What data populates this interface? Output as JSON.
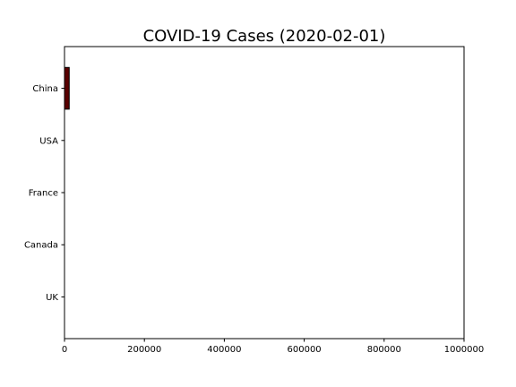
{
  "chart_data": {
    "type": "bar",
    "orientation": "horizontal",
    "title": "COVID-19 Cases (2020-02-01)",
    "xlabel": "",
    "ylabel": "",
    "categories": [
      "China",
      "USA",
      "France",
      "Canada",
      "UK"
    ],
    "values": [
      11800,
      8,
      6,
      4,
      2
    ],
    "xlim": [
      0,
      1000000
    ],
    "x_ticks": [
      "0",
      "200000",
      "400000",
      "600000",
      "800000",
      "1000000"
    ],
    "grid": false,
    "legend": "none",
    "bar_color": "#5a0000",
    "bar_edge_color": "#000000"
  }
}
